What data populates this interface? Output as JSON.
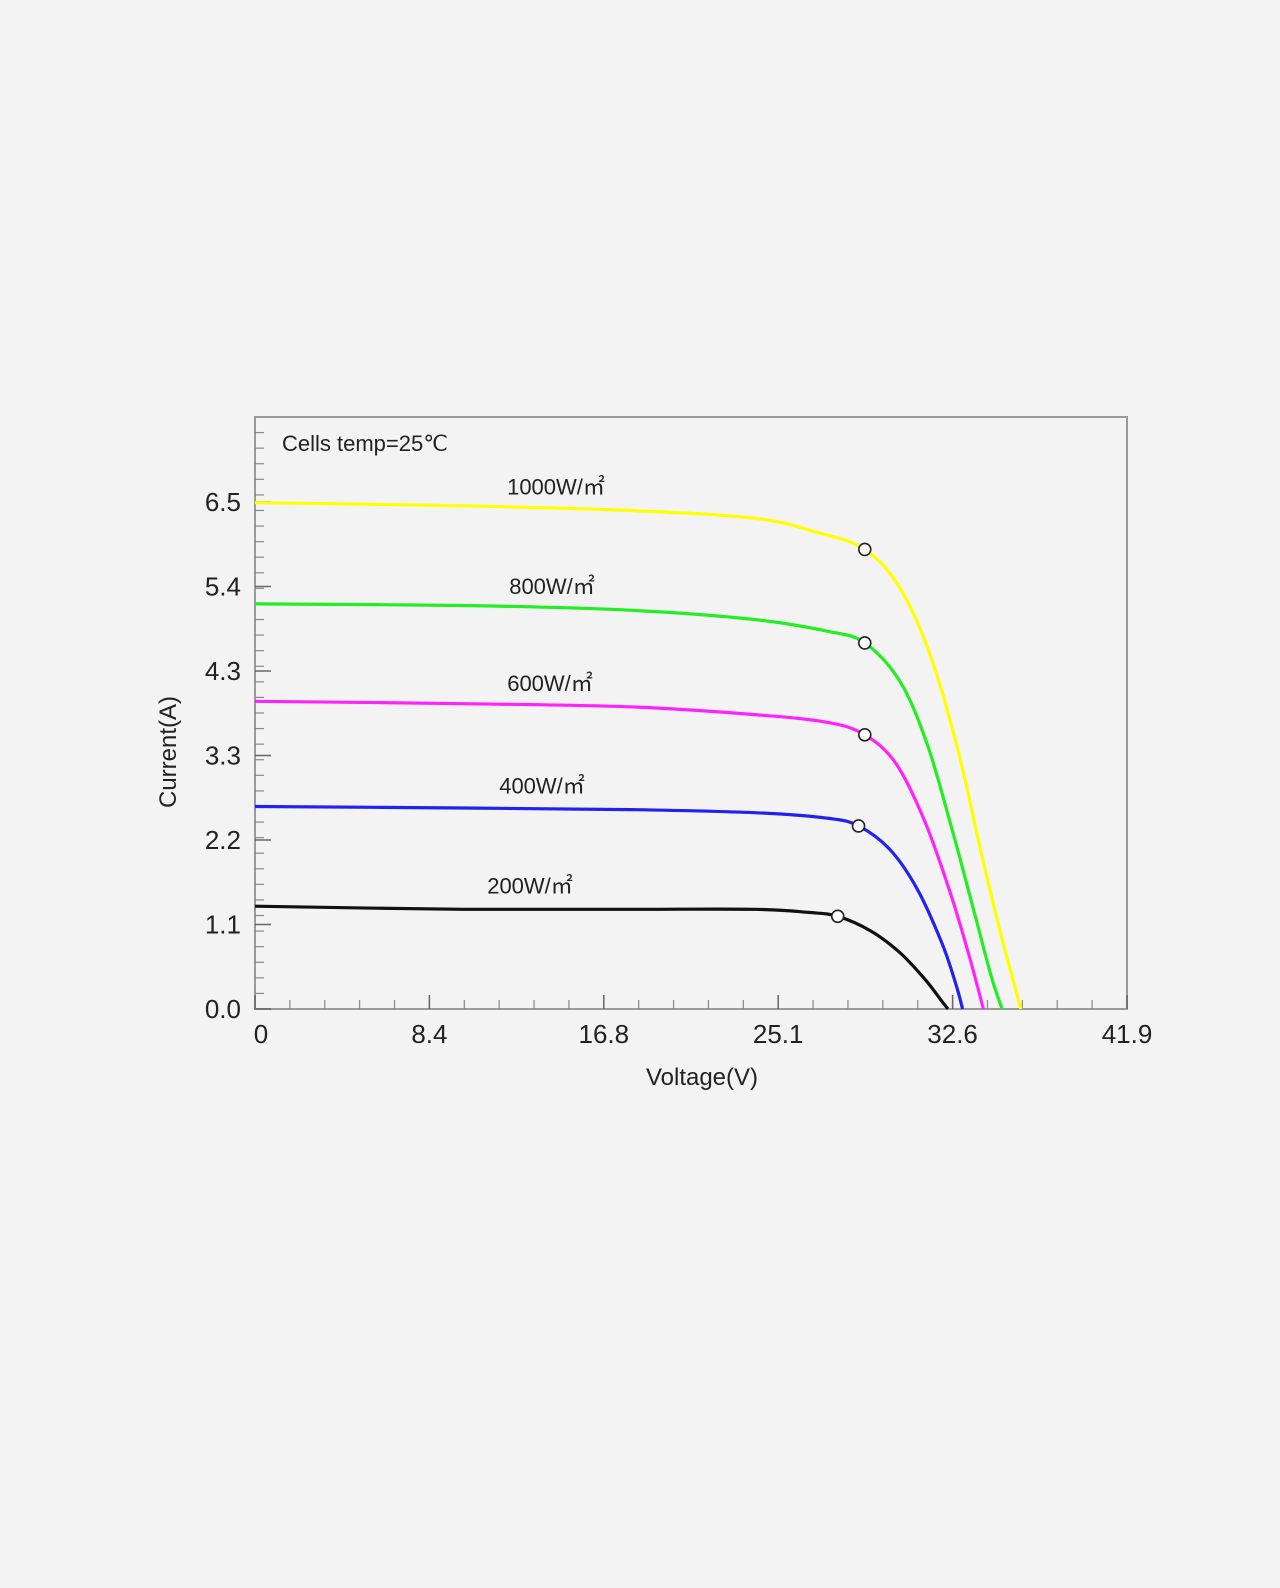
{
  "chart_data": {
    "type": "line",
    "title": "",
    "annotation": "Cells temp=25℃",
    "xlabel": "Voltage(V)",
    "ylabel": "Current(A)",
    "xlim": [
      0,
      41.9
    ],
    "ylim": [
      0,
      7.6
    ],
    "x_ticks": [
      "0",
      "8.4",
      "16.8",
      "25.1",
      "32.6",
      "41.9"
    ],
    "y_ticks": [
      "0.0",
      "1.1",
      "2.2",
      "3.3",
      "4.3",
      "5.4",
      "6.5"
    ],
    "grid": false,
    "series": [
      {
        "name": "1000W/㎡",
        "color": "#ffff00",
        "points": [
          [
            0,
            6.5
          ],
          [
            10,
            6.46
          ],
          [
            18,
            6.4
          ],
          [
            24,
            6.3
          ],
          [
            27,
            6.12
          ],
          [
            29.3,
            5.9
          ],
          [
            31,
            5.4
          ],
          [
            32.5,
            4.5
          ],
          [
            33.8,
            3.3
          ],
          [
            34.9,
            2.0
          ],
          [
            35.8,
            1.0
          ],
          [
            36.5,
            0.3
          ],
          [
            36.8,
            0
          ]
        ],
        "mpp": [
          29.3,
          5.9
        ]
      },
      {
        "name": "800W/㎡",
        "color": "#22ee22",
        "points": [
          [
            0,
            5.2
          ],
          [
            10,
            5.18
          ],
          [
            18,
            5.12
          ],
          [
            24,
            5.0
          ],
          [
            27.5,
            4.85
          ],
          [
            29.3,
            4.7
          ],
          [
            31,
            4.2
          ],
          [
            32.3,
            3.4
          ],
          [
            33.5,
            2.3
          ],
          [
            34.6,
            1.2
          ],
          [
            35.4,
            0.4
          ],
          [
            35.9,
            0
          ]
        ],
        "mpp": [
          29.3,
          4.7
        ]
      },
      {
        "name": "600W/㎡",
        "color": "#ff22ff",
        "points": [
          [
            0,
            3.95
          ],
          [
            10,
            3.92
          ],
          [
            18,
            3.88
          ],
          [
            24,
            3.78
          ],
          [
            27.5,
            3.68
          ],
          [
            29.3,
            3.52
          ],
          [
            30.8,
            3.15
          ],
          [
            32.2,
            2.4
          ],
          [
            33.4,
            1.5
          ],
          [
            34.3,
            0.7
          ],
          [
            35.0,
            0
          ]
        ],
        "mpp": [
          29.3,
          3.52
        ]
      },
      {
        "name": "400W/㎡",
        "color": "#2222ee",
        "points": [
          [
            0,
            2.6
          ],
          [
            10,
            2.58
          ],
          [
            18,
            2.56
          ],
          [
            24,
            2.52
          ],
          [
            27.5,
            2.45
          ],
          [
            29.0,
            2.35
          ],
          [
            30.5,
            2.05
          ],
          [
            31.8,
            1.55
          ],
          [
            33.0,
            0.85
          ],
          [
            33.7,
            0.3
          ],
          [
            34.0,
            0
          ]
        ],
        "mpp": [
          29.0,
          2.35
        ]
      },
      {
        "name": "200W/㎡",
        "color": "#111111",
        "points": [
          [
            0,
            1.32
          ],
          [
            10,
            1.28
          ],
          [
            18,
            1.28
          ],
          [
            24,
            1.28
          ],
          [
            26.6,
            1.24
          ],
          [
            28.0,
            1.19
          ],
          [
            29.6,
            1.0
          ],
          [
            31.0,
            0.72
          ],
          [
            32.2,
            0.38
          ],
          [
            33.0,
            0.1
          ],
          [
            33.3,
            0
          ]
        ],
        "mpp": [
          28.0,
          1.19
        ]
      }
    ]
  }
}
